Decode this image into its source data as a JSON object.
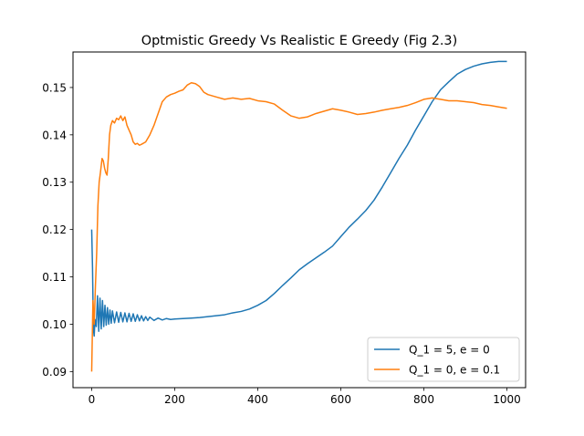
{
  "chart_data": {
    "type": "line",
    "title": "Optmistic Greedy Vs Realistic E Greedy (Fig 2.3)",
    "xlabel": "",
    "ylabel": "",
    "xlim": [
      -45,
      1045
    ],
    "ylim": [
      0.0866,
      0.1575
    ],
    "xticks": [
      0,
      200,
      400,
      600,
      800,
      1000
    ],
    "yticks": [
      0.09,
      0.1,
      0.11,
      0.12,
      0.13,
      0.14,
      0.15
    ],
    "ytick_labels": [
      "0.09",
      "0.10",
      "0.11",
      "0.12",
      "0.13",
      "0.14",
      "0.15"
    ],
    "grid": false,
    "legend_position": "lower right",
    "series": [
      {
        "name": "Q_1 = 5, e = 0",
        "color": "#1f77b4",
        "points": [
          [
            0,
            0.12
          ],
          [
            2,
            0.112
          ],
          [
            4,
            0.099
          ],
          [
            6,
            0.0975
          ],
          [
            8,
            0.101
          ],
          [
            11,
            0.0995
          ],
          [
            14,
            0.106
          ],
          [
            17,
            0.0985
          ],
          [
            20,
            0.1055
          ],
          [
            23,
            0.099
          ],
          [
            26,
            0.105
          ],
          [
            29,
            0.0995
          ],
          [
            32,
            0.104
          ],
          [
            35,
            0.0998
          ],
          [
            38,
            0.1035
          ],
          [
            41,
            0.1
          ],
          [
            44,
            0.103
          ],
          [
            47,
            0.1002
          ],
          [
            50,
            0.1028
          ],
          [
            55,
            0.1003
          ],
          [
            60,
            0.1026
          ],
          [
            65,
            0.1004
          ],
          [
            70,
            0.1025
          ],
          [
            75,
            0.1005
          ],
          [
            80,
            0.1024
          ],
          [
            85,
            0.1005
          ],
          [
            90,
            0.1023
          ],
          [
            95,
            0.1006
          ],
          [
            100,
            0.1022
          ],
          [
            105,
            0.1006
          ],
          [
            110,
            0.102
          ],
          [
            115,
            0.1007
          ],
          [
            120,
            0.1018
          ],
          [
            125,
            0.1007
          ],
          [
            130,
            0.1016
          ],
          [
            135,
            0.1008
          ],
          [
            140,
            0.1015
          ],
          [
            150,
            0.1008
          ],
          [
            160,
            0.1013
          ],
          [
            170,
            0.1009
          ],
          [
            180,
            0.1012
          ],
          [
            190,
            0.101
          ],
          [
            200,
            0.1011
          ],
          [
            220,
            0.1012
          ],
          [
            240,
            0.1013
          ],
          [
            260,
            0.1014
          ],
          [
            280,
            0.1016
          ],
          [
            300,
            0.1018
          ],
          [
            320,
            0.102
          ],
          [
            340,
            0.1024
          ],
          [
            360,
            0.1027
          ],
          [
            380,
            0.1032
          ],
          [
            400,
            0.104
          ],
          [
            420,
            0.105
          ],
          [
            440,
            0.1065
          ],
          [
            460,
            0.1082
          ],
          [
            480,
            0.1098
          ],
          [
            500,
            0.1115
          ],
          [
            520,
            0.1128
          ],
          [
            540,
            0.114
          ],
          [
            560,
            0.1152
          ],
          [
            580,
            0.1165
          ],
          [
            600,
            0.1185
          ],
          [
            620,
            0.1205
          ],
          [
            640,
            0.1222
          ],
          [
            660,
            0.124
          ],
          [
            680,
            0.1262
          ],
          [
            700,
            0.129
          ],
          [
            720,
            0.132
          ],
          [
            740,
            0.135
          ],
          [
            760,
            0.1378
          ],
          [
            780,
            0.141
          ],
          [
            800,
            0.144
          ],
          [
            820,
            0.147
          ],
          [
            840,
            0.1495
          ],
          [
            860,
            0.1512
          ],
          [
            880,
            0.1528
          ],
          [
            900,
            0.1538
          ],
          [
            920,
            0.1545
          ],
          [
            940,
            0.155
          ],
          [
            960,
            0.1553
          ],
          [
            980,
            0.1555
          ],
          [
            1000,
            0.1555
          ]
        ]
      },
      {
        "name": "Q_1 = 0, e = 0.1",
        "color": "#ff7f0e",
        "points": [
          [
            0,
            0.09
          ],
          [
            3,
            0.105
          ],
          [
            6,
            0.1
          ],
          [
            9,
            0.108
          ],
          [
            12,
            0.115
          ],
          [
            15,
            0.125
          ],
          [
            18,
            0.13
          ],
          [
            21,
            0.132
          ],
          [
            25,
            0.135
          ],
          [
            28,
            0.1345
          ],
          [
            31,
            0.133
          ],
          [
            34,
            0.132
          ],
          [
            37,
            0.1315
          ],
          [
            40,
            0.135
          ],
          [
            43,
            0.14
          ],
          [
            46,
            0.142
          ],
          [
            50,
            0.143
          ],
          [
            55,
            0.1425
          ],
          [
            60,
            0.1435
          ],
          [
            65,
            0.1432
          ],
          [
            70,
            0.144
          ],
          [
            75,
            0.143
          ],
          [
            80,
            0.1438
          ],
          [
            85,
            0.142
          ],
          [
            90,
            0.141
          ],
          [
            95,
            0.14
          ],
          [
            100,
            0.1385
          ],
          [
            105,
            0.138
          ],
          [
            110,
            0.1382
          ],
          [
            115,
            0.1378
          ],
          [
            120,
            0.138
          ],
          [
            130,
            0.1385
          ],
          [
            140,
            0.14
          ],
          [
            150,
            0.142
          ],
          [
            160,
            0.1445
          ],
          [
            170,
            0.147
          ],
          [
            180,
            0.148
          ],
          [
            190,
            0.1485
          ],
          [
            200,
            0.1488
          ],
          [
            210,
            0.1492
          ],
          [
            220,
            0.1495
          ],
          [
            230,
            0.1505
          ],
          [
            240,
            0.151
          ],
          [
            250,
            0.1508
          ],
          [
            260,
            0.1502
          ],
          [
            270,
            0.149
          ],
          [
            280,
            0.1485
          ],
          [
            300,
            0.148
          ],
          [
            320,
            0.1475
          ],
          [
            340,
            0.1478
          ],
          [
            360,
            0.1475
          ],
          [
            380,
            0.1477
          ],
          [
            400,
            0.1472
          ],
          [
            420,
            0.147
          ],
          [
            440,
            0.1465
          ],
          [
            460,
            0.1452
          ],
          [
            480,
            0.144
          ],
          [
            500,
            0.1435
          ],
          [
            520,
            0.1438
          ],
          [
            540,
            0.1445
          ],
          [
            560,
            0.145
          ],
          [
            580,
            0.1455
          ],
          [
            600,
            0.1452
          ],
          [
            620,
            0.1448
          ],
          [
            640,
            0.1443
          ],
          [
            660,
            0.1445
          ],
          [
            680,
            0.1448
          ],
          [
            700,
            0.1452
          ],
          [
            720,
            0.1455
          ],
          [
            740,
            0.1458
          ],
          [
            760,
            0.1462
          ],
          [
            780,
            0.1468
          ],
          [
            800,
            0.1475
          ],
          [
            820,
            0.1478
          ],
          [
            840,
            0.1475
          ],
          [
            860,
            0.1472
          ],
          [
            880,
            0.1472
          ],
          [
            900,
            0.147
          ],
          [
            920,
            0.1468
          ],
          [
            940,
            0.1464
          ],
          [
            960,
            0.1462
          ],
          [
            980,
            0.1459
          ],
          [
            1000,
            0.1456
          ]
        ]
      }
    ]
  }
}
